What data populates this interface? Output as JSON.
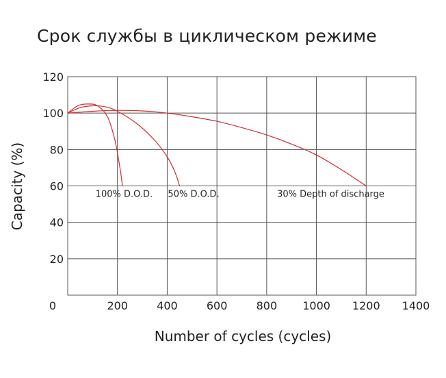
{
  "chart_data": {
    "type": "line",
    "title": "Срок службы в циклическом режиме",
    "xlabel": "Number of cycles (cycles)",
    "ylabel": "Capacity (%)",
    "xlim": [
      0,
      1400
    ],
    "ylim": [
      0,
      120
    ],
    "x_ticks": [
      "0",
      "200",
      "400",
      "600",
      "800",
      "1000",
      "1200",
      "1400"
    ],
    "y_ticks": [
      "20",
      "40",
      "60",
      "80",
      "100",
      "120"
    ],
    "grid": true,
    "line_color": "#d62a2a",
    "series": [
      {
        "name": "100% D.O.D.",
        "x": [
          0,
          40,
          80,
          120,
          160,
          190,
          210,
          220
        ],
        "y": [
          100,
          104,
          105,
          104,
          98,
          85,
          70,
          60
        ]
      },
      {
        "name": "50% D.O.D.",
        "x": [
          0,
          50,
          100,
          150,
          200,
          280,
          350,
          400,
          430,
          450
        ],
        "y": [
          100,
          103,
          104,
          103.5,
          101,
          94,
          85,
          76,
          68,
          60
        ]
      },
      {
        "name": "30% Depth of discharge",
        "x": [
          0,
          100,
          200,
          300,
          400,
          500,
          600,
          700,
          800,
          900,
          1000,
          1100,
          1150,
          1200
        ],
        "y": [
          100,
          101,
          101.5,
          101.2,
          100,
          98,
          95.5,
          92,
          88,
          83,
          77,
          69,
          64.5,
          60
        ]
      }
    ]
  }
}
